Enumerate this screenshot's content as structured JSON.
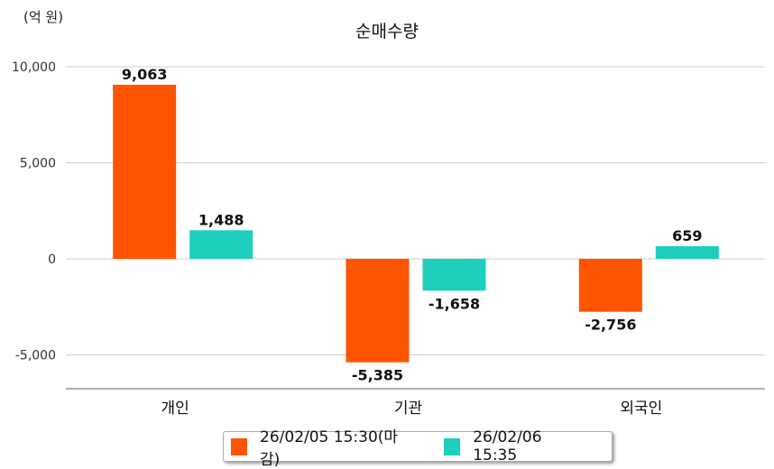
{
  "chart_data": {
    "type": "bar",
    "title": "순매수량",
    "ylabel": "(억 원)",
    "xlabel": "",
    "categories": [
      "개인",
      "기관",
      "외국인"
    ],
    "series": [
      {
        "name": "26/02/05 15:30(마감)",
        "color": "#ff5400",
        "values": [
          9063,
          -5385,
          -2756
        ],
        "labels": [
          "9,063",
          "-5,385",
          "-2,756"
        ]
      },
      {
        "name": "26/02/06 15:35",
        "color": "#1ecfbd",
        "values": [
          1488,
          -1658,
          659
        ],
        "labels": [
          "1,488",
          "-1,658",
          "659"
        ]
      }
    ],
    "yticks": [
      10000,
      5000,
      0,
      -5000
    ],
    "ytick_labels": [
      "10,000",
      "5,000",
      "0",
      "-5,000"
    ],
    "ylim": [
      -6700,
      10000
    ],
    "grid": true,
    "legend_position": "bottom"
  }
}
